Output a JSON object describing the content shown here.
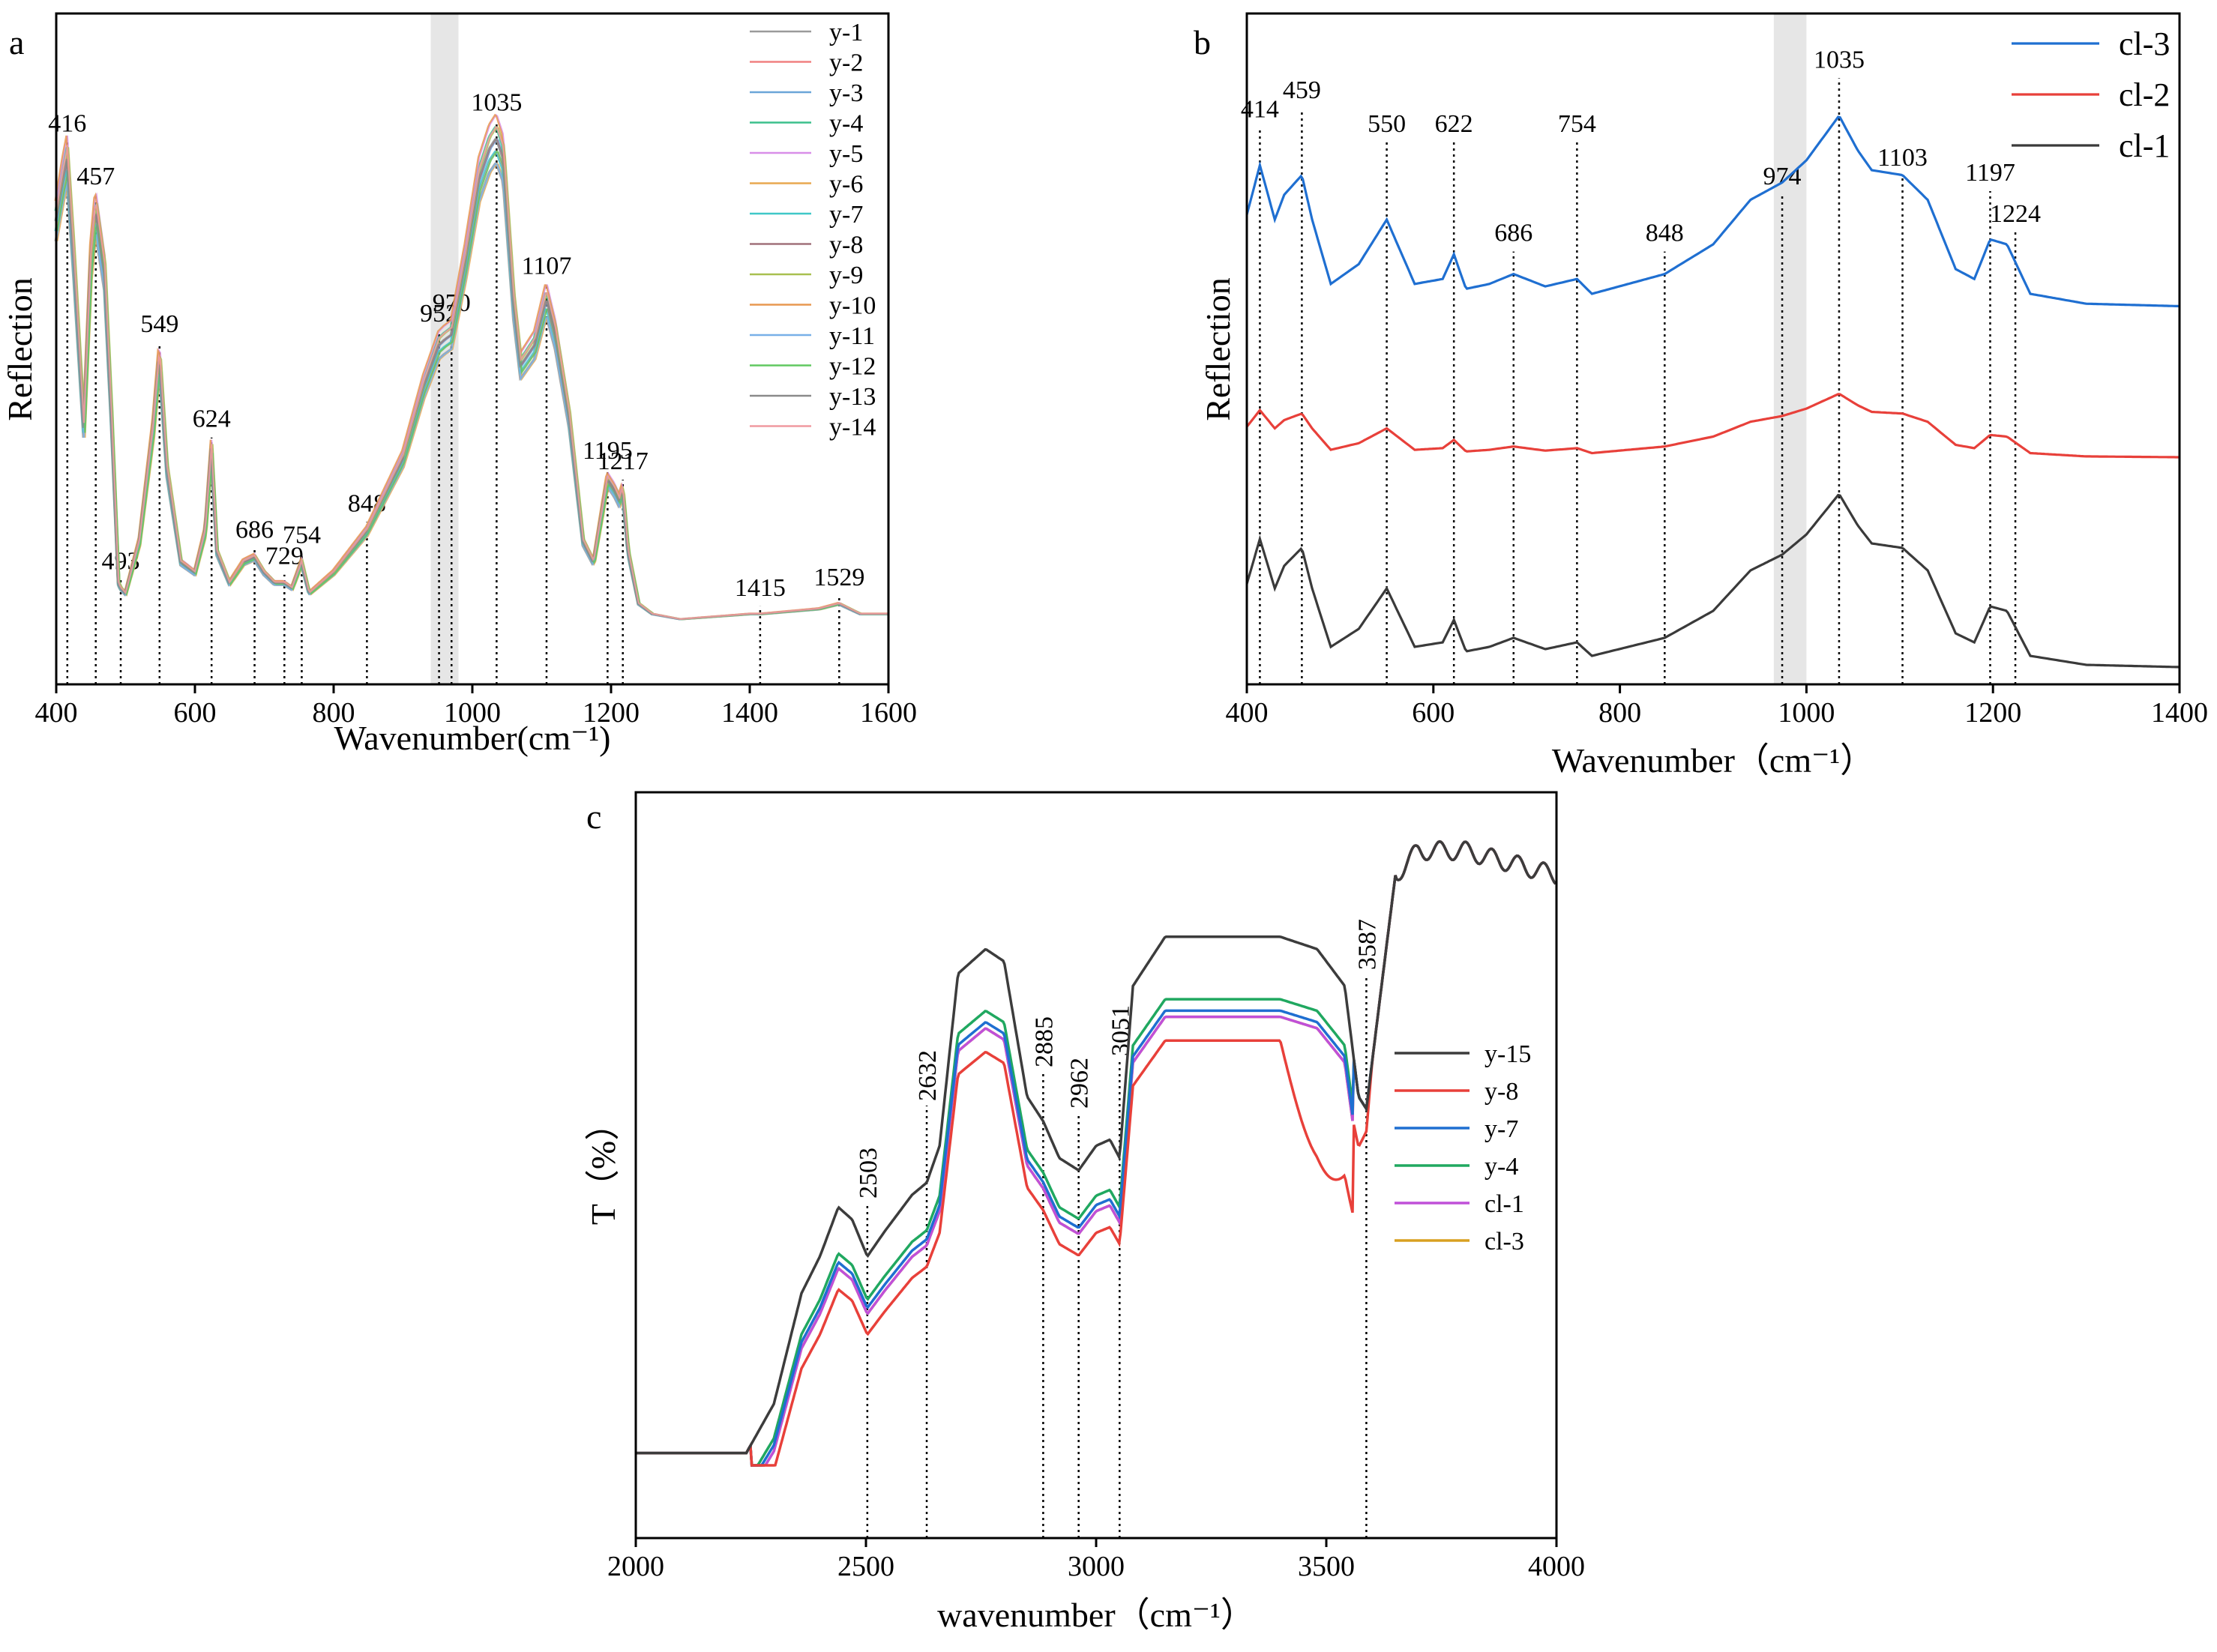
{
  "chart_data": [
    {
      "panel": "a",
      "type": "line",
      "xlabel": "Wavenumber(cm⁻¹)",
      "ylabel": "Reflection",
      "xlim": [
        400,
        1600
      ],
      "ylim": [
        0,
        1
      ],
      "xticks": [
        "400",
        "600",
        "800",
        "1000",
        "1200",
        "1400",
        "1600"
      ],
      "shaded_band": [
        940,
        980
      ],
      "legend": [
        "y-1",
        "y-2",
        "y-3",
        "y-4",
        "y-5",
        "y-6",
        "y-7",
        "y-8",
        "y-9",
        "y-10",
        "y-11",
        "y-12",
        "y-13",
        "y-14"
      ],
      "legend_colors": [
        "#9a9a9a",
        "#f08080",
        "#6aa6d8",
        "#3cbf8c",
        "#d88ee8",
        "#e8a850",
        "#40c8c8",
        "#a0707a",
        "#a8c050",
        "#e89850",
        "#78b0e8",
        "#60c860",
        "#8a8a8a",
        "#f09aa0"
      ],
      "peaks": [
        {
          "x": 416,
          "label": "416"
        },
        {
          "x": 457,
          "label": "457"
        },
        {
          "x": 493,
          "label": "493"
        },
        {
          "x": 549,
          "label": "549"
        },
        {
          "x": 624,
          "label": "624"
        },
        {
          "x": 686,
          "label": "686"
        },
        {
          "x": 729,
          "label": "729"
        },
        {
          "x": 754,
          "label": "754"
        },
        {
          "x": 848,
          "label": "848"
        },
        {
          "x": 952,
          "label": "952"
        },
        {
          "x": 970,
          "label": "970"
        },
        {
          "x": 1035,
          "label": "1035"
        },
        {
          "x": 1107,
          "label": "1107"
        },
        {
          "x": 1195,
          "label": "1195"
        },
        {
          "x": 1217,
          "label": "1217"
        },
        {
          "x": 1415,
          "label": "1415"
        },
        {
          "x": 1529,
          "label": "1529"
        }
      ],
      "spectrum": {
        "x": [
          400,
          410,
          416,
          425,
          440,
          450,
          457,
          470,
          480,
          490,
          493,
          500,
          520,
          540,
          549,
          560,
          580,
          600,
          615,
          624,
          632,
          650,
          670,
          686,
          700,
          715,
          729,
          740,
          754,
          765,
          800,
          848,
          900,
          930,
          952,
          960,
          970,
          990,
          1010,
          1025,
          1035,
          1045,
          1060,
          1070,
          1090,
          1107,
          1120,
          1140,
          1160,
          1175,
          1190,
          1195,
          1205,
          1212,
          1217,
          1225,
          1240,
          1260,
          1300,
          1400,
          1415,
          1500,
          1529,
          1560,
          1600
        ],
        "y": [
          0.78,
          0.86,
          0.9,
          0.72,
          0.38,
          0.7,
          0.8,
          0.68,
          0.4,
          0.08,
          0.07,
          0.06,
          0.16,
          0.38,
          0.52,
          0.3,
          0.12,
          0.1,
          0.18,
          0.34,
          0.14,
          0.08,
          0.12,
          0.13,
          0.1,
          0.08,
          0.08,
          0.07,
          0.12,
          0.06,
          0.1,
          0.18,
          0.32,
          0.46,
          0.54,
          0.55,
          0.56,
          0.7,
          0.86,
          0.92,
          0.94,
          0.9,
          0.62,
          0.5,
          0.54,
          0.63,
          0.56,
          0.4,
          0.16,
          0.12,
          0.24,
          0.28,
          0.26,
          0.24,
          0.26,
          0.14,
          0.04,
          0.02,
          0.01,
          0.02,
          0.02,
          0.03,
          0.04,
          0.02,
          0.02
        ]
      }
    },
    {
      "panel": "b",
      "type": "line",
      "xlabel": "Wavenumber（cm⁻¹）",
      "ylabel": "Reflection",
      "xlim": [
        400,
        1400
      ],
      "xticks": [
        "400",
        "600",
        "800",
        "1000",
        "1200",
        "1400"
      ],
      "shaded_band": [
        965,
        1000
      ],
      "series": [
        {
          "name": "cl-3",
          "color": "#1f6fd1",
          "offset": 2.0
        },
        {
          "name": "cl-2",
          "color": "#e8403a",
          "offset": 1.0
        },
        {
          "name": "cl-1",
          "color": "#3a3a3a",
          "offset": 0.0
        }
      ],
      "peaks": [
        {
          "x": 414,
          "label": "414"
        },
        {
          "x": 459,
          "label": "459"
        },
        {
          "x": 550,
          "label": "550"
        },
        {
          "x": 622,
          "label": "622"
        },
        {
          "x": 686,
          "label": "686"
        },
        {
          "x": 754,
          "label": "754"
        },
        {
          "x": 848,
          "label": "848"
        },
        {
          "x": 974,
          "label": "974"
        },
        {
          "x": 1035,
          "label": "1035"
        },
        {
          "x": 1103,
          "label": "1103"
        },
        {
          "x": 1197,
          "label": "1197"
        },
        {
          "x": 1224,
          "label": "1224"
        }
      ],
      "spectrum": {
        "x": [
          400,
          414,
          430,
          440,
          459,
          470,
          490,
          520,
          550,
          580,
          610,
          622,
          635,
          660,
          686,
          720,
          754,
          770,
          848,
          900,
          940,
          974,
          1000,
          1035,
          1055,
          1070,
          1103,
          1130,
          1160,
          1180,
          1197,
          1215,
          1240,
          1300,
          1400
        ],
        "y": [
          0.42,
          0.62,
          0.4,
          0.5,
          0.58,
          0.4,
          0.14,
          0.22,
          0.4,
          0.14,
          0.16,
          0.26,
          0.12,
          0.14,
          0.18,
          0.13,
          0.16,
          0.1,
          0.18,
          0.3,
          0.48,
          0.55,
          0.64,
          0.82,
          0.68,
          0.6,
          0.58,
          0.48,
          0.2,
          0.16,
          0.32,
          0.3,
          0.1,
          0.06,
          0.05
        ]
      }
    },
    {
      "panel": "c",
      "type": "line",
      "xlabel": "wavenumber（cm⁻¹）",
      "ylabel": "T（%）",
      "xlim": [
        2000,
        4000
      ],
      "xticks": [
        "2000",
        "2500",
        "3000",
        "3500",
        "4000"
      ],
      "series": [
        {
          "name": "y-15",
          "color": "#3c3c3c"
        },
        {
          "name": "y-8",
          "color": "#e8403a"
        },
        {
          "name": "y-7",
          "color": "#1f6fd1"
        },
        {
          "name": "y-4",
          "color": "#20a860"
        },
        {
          "name": "cl-1",
          "color": "#c050d8"
        },
        {
          "name": "cl-3",
          "color": "#d8a020"
        }
      ],
      "peaks": [
        {
          "x": 2503,
          "label": "2503"
        },
        {
          "x": 2632,
          "label": "2632"
        },
        {
          "x": 2885,
          "label": "2885"
        },
        {
          "x": 2962,
          "label": "2962"
        },
        {
          "x": 3051,
          "label": "3051"
        },
        {
          "x": 3587,
          "label": "3587"
        }
      ],
      "spectrum_base": {
        "x": [
          2000,
          2200,
          2240,
          2300,
          2360,
          2400,
          2440,
          2470,
          2503,
          2540,
          2580,
          2600,
          2632,
          2660,
          2700,
          2760,
          2800,
          2850,
          2885,
          2920,
          2962,
          3000,
          3030,
          3051,
          3080,
          3150,
          3200,
          3300,
          3400,
          3480,
          3540,
          3570,
          3587,
          3610,
          3650,
          3700,
          3800,
          3900,
          4000
        ],
        "y": [
          0.02,
          0.02,
          0.02,
          0.1,
          0.28,
          0.34,
          0.42,
          0.4,
          0.34,
          0.38,
          0.42,
          0.44,
          0.46,
          0.52,
          0.8,
          0.84,
          0.82,
          0.6,
          0.56,
          0.5,
          0.48,
          0.52,
          0.53,
          0.5,
          0.78,
          0.86,
          0.86,
          0.86,
          0.86,
          0.84,
          0.78,
          0.6,
          0.58,
          0.72,
          0.96,
          1.0,
          1.0,
          0.98,
          0.96
        ]
      }
    }
  ]
}
